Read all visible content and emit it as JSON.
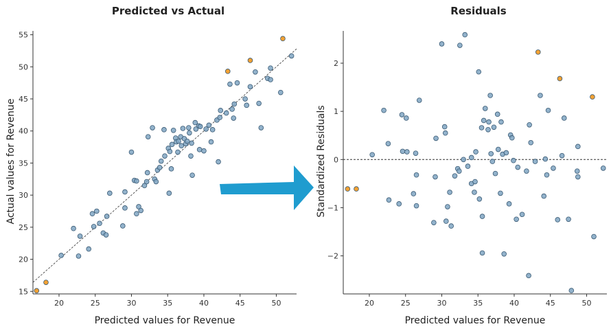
{
  "chart_data": [
    {
      "type": "scatter",
      "title": "Predicted vs Actual",
      "xlabel": "Predicted values for Revenue",
      "ylabel": "Actual values for Revenue",
      "xlim": [
        16.4,
        52.8
      ],
      "ylim": [
        14.6,
        55.6
      ],
      "xticks": [
        20,
        25,
        30,
        35,
        40,
        45,
        50
      ],
      "yticks": [
        15,
        20,
        25,
        30,
        35,
        40,
        45,
        50,
        55
      ],
      "reference_line": "y = x (dashed)",
      "grid": false,
      "colors": {
        "normal": "#7fa4c2",
        "outlier": "#f0900f"
      },
      "series": [
        {
          "points": [
            [
              20.3,
              20.6
            ],
            [
              22.0,
              24.8
            ],
            [
              22.7,
              20.5
            ],
            [
              22.9,
              23.6
            ],
            [
              24.1,
              21.6
            ],
            [
              24.6,
              27.1
            ],
            [
              25.2,
              27.5
            ],
            [
              24.8,
              25.1
            ],
            [
              25.6,
              25.6
            ],
            [
              26.1,
              24.1
            ],
            [
              26.5,
              23.8
            ],
            [
              26.6,
              26.7
            ],
            [
              27.0,
              30.3
            ],
            [
              28.8,
              25.2
            ],
            [
              29.1,
              30.5
            ],
            [
              29.1,
              28.0
            ],
            [
              30.0,
              36.7
            ],
            [
              30.4,
              32.3
            ],
            [
              30.7,
              27.1
            ],
            [
              30.7,
              32.2
            ],
            [
              31.0,
              28.2
            ],
            [
              31.3,
              27.6
            ],
            [
              31.8,
              31.5
            ],
            [
              32.1,
              32.1
            ],
            [
              32.2,
              33.5
            ],
            [
              32.3,
              39.1
            ],
            [
              32.9,
              40.5
            ],
            [
              33.2,
              32.5
            ],
            [
              33.4,
              32.1
            ],
            [
              33.6,
              33.9
            ],
            [
              33.9,
              34.3
            ],
            [
              34.1,
              35.3
            ],
            [
              34.5,
              40.2
            ],
            [
              34.6,
              36.1
            ],
            [
              35.1,
              37.3
            ],
            [
              35.2,
              30.3
            ],
            [
              35.3,
              36.8
            ],
            [
              35.5,
              34.1
            ],
            [
              35.6,
              37.9
            ],
            [
              35.8,
              40.1
            ],
            [
              36.1,
              38.9
            ],
            [
              36.2,
              38.3
            ],
            [
              36.4,
              36.7
            ],
            [
              36.5,
              38.4
            ],
            [
              36.8,
              39.1
            ],
            [
              36.9,
              37.7
            ],
            [
              37.1,
              40.4
            ],
            [
              37.3,
              38.8
            ],
            [
              37.5,
              38.0
            ],
            [
              37.7,
              38.4
            ],
            [
              37.9,
              40.5
            ],
            [
              38.0,
              39.7
            ],
            [
              38.2,
              36.1
            ],
            [
              38.3,
              38.1
            ],
            [
              38.4,
              33.1
            ],
            [
              38.8,
              41.3
            ],
            [
              38.9,
              40.3
            ],
            [
              39.3,
              40.8
            ],
            [
              39.4,
              37.1
            ],
            [
              39.5,
              40.7
            ],
            [
              40.0,
              36.9
            ],
            [
              40.3,
              40.3
            ],
            [
              40.7,
              40.9
            ],
            [
              41.0,
              38.3
            ],
            [
              41.2,
              40.2
            ],
            [
              41.8,
              41.7
            ],
            [
              42.0,
              35.2
            ],
            [
              42.2,
              42.1
            ],
            [
              42.3,
              43.2
            ],
            [
              43.1,
              42.8
            ],
            [
              43.6,
              47.3
            ],
            [
              43.9,
              43.4
            ],
            [
              44.2,
              44.2
            ],
            [
              44.6,
              47.5
            ],
            [
              44.1,
              42.0
            ],
            [
              45.7,
              45.0
            ],
            [
              45.9,
              44.0
            ],
            [
              46.4,
              46.9
            ],
            [
              47.1,
              49.2
            ],
            [
              47.6,
              44.3
            ],
            [
              47.9,
              40.5
            ],
            [
              48.8,
              48.2
            ],
            [
              49.2,
              49.8
            ],
            [
              49.2,
              48.0
            ],
            [
              50.6,
              46.0
            ],
            [
              52.1,
              51.7
            ]
          ]
        },
        {
          "points": [
            [
              16.9,
              15.1
            ],
            [
              18.2,
              16.4
            ],
            [
              43.3,
              49.3
            ],
            [
              46.4,
              51.0
            ],
            [
              50.9,
              54.4
            ]
          ]
        }
      ]
    },
    {
      "type": "scatter",
      "title": "Residuals",
      "xlabel": "Predicted values for Revenue",
      "ylabel": "Standardized Residuals",
      "xlim": [
        16.4,
        52.8
      ],
      "ylim": [
        -2.79,
        2.67
      ],
      "xticks": [
        20,
        25,
        30,
        35,
        40,
        45,
        50
      ],
      "yticks": [
        -2,
        -1,
        0,
        1,
        2
      ],
      "reference_line": "y = 0 (dashed)",
      "grid": false,
      "colors": {
        "normal": "#7fa4c2",
        "outlier": "#f0900f"
      },
      "series": [
        {
          "points": [
            [
              20.4,
              0.1
            ],
            [
              22.0,
              1.02
            ],
            [
              22.6,
              0.33
            ],
            [
              22.7,
              -0.84
            ],
            [
              24.1,
              -0.92
            ],
            [
              24.5,
              0.93
            ],
            [
              24.6,
              0.17
            ],
            [
              25.1,
              0.86
            ],
            [
              25.2,
              0.16
            ],
            [
              26.1,
              -0.71
            ],
            [
              26.4,
              0.13
            ],
            [
              26.5,
              -0.32
            ],
            [
              26.5,
              -0.96
            ],
            [
              26.9,
              1.23
            ],
            [
              28.9,
              -1.31
            ],
            [
              29.1,
              -0.36
            ],
            [
              29.2,
              0.44
            ],
            [
              30.0,
              2.4
            ],
            [
              30.4,
              0.68
            ],
            [
              30.5,
              0.55
            ],
            [
              30.6,
              -1.28
            ],
            [
              30.8,
              -0.98
            ],
            [
              31.1,
              -0.68
            ],
            [
              31.3,
              -1.38
            ],
            [
              31.8,
              -0.34
            ],
            [
              32.2,
              -0.19
            ],
            [
              32.4,
              -0.24
            ],
            [
              32.5,
              2.37
            ],
            [
              33.0,
              0.0
            ],
            [
              33.2,
              2.59
            ],
            [
              33.6,
              -0.14
            ],
            [
              34.1,
              0.04
            ],
            [
              34.1,
              -0.5
            ],
            [
              34.5,
              -0.68
            ],
            [
              34.6,
              -0.46
            ],
            [
              34.7,
              0.16
            ],
            [
              35.1,
              1.82
            ],
            [
              35.2,
              -0.82
            ],
            [
              35.5,
              0.66
            ],
            [
              35.6,
              -1.94
            ],
            [
              35.6,
              -1.18
            ],
            [
              35.8,
              0.81
            ],
            [
              36.0,
              1.06
            ],
            [
              36.4,
              0.62
            ],
            [
              36.5,
              0.78
            ],
            [
              36.7,
              1.33
            ],
            [
              36.8,
              0.12
            ],
            [
              37.0,
              -0.04
            ],
            [
              37.2,
              0.67
            ],
            [
              37.4,
              -0.29
            ],
            [
              37.7,
              0.94
            ],
            [
              37.8,
              0.21
            ],
            [
              38.1,
              -0.7
            ],
            [
              38.2,
              0.78
            ],
            [
              38.4,
              0.11
            ],
            [
              38.6,
              -1.96
            ],
            [
              38.9,
              0.14
            ],
            [
              39.3,
              -0.92
            ],
            [
              39.5,
              0.51
            ],
            [
              39.7,
              0.45
            ],
            [
              39.9,
              -0.02
            ],
            [
              40.3,
              -1.24
            ],
            [
              40.5,
              -0.16
            ],
            [
              41.1,
              -1.14
            ],
            [
              41.7,
              -0.24
            ],
            [
              42.0,
              -2.41
            ],
            [
              42.1,
              0.72
            ],
            [
              42.3,
              0.35
            ],
            [
              42.9,
              -0.04
            ],
            [
              43.6,
              1.33
            ],
            [
              44.1,
              -0.76
            ],
            [
              44.3,
              0.01
            ],
            [
              44.5,
              -0.32
            ],
            [
              44.7,
              1.02
            ],
            [
              45.4,
              -0.18
            ],
            [
              46.0,
              -1.25
            ],
            [
              46.6,
              0.08
            ],
            [
              46.9,
              0.86
            ],
            [
              47.5,
              -1.24
            ],
            [
              47.9,
              -2.72
            ],
            [
              48.7,
              -0.24
            ],
            [
              48.8,
              -0.36
            ],
            [
              48.8,
              0.27
            ],
            [
              51.0,
              -1.6
            ],
            [
              52.3,
              -0.18
            ]
          ]
        },
        {
          "points": [
            [
              17.0,
              -0.61
            ],
            [
              18.2,
              -0.61
            ],
            [
              43.3,
              2.23
            ],
            [
              46.3,
              1.68
            ],
            [
              50.8,
              1.3
            ]
          ]
        }
      ]
    }
  ]
}
